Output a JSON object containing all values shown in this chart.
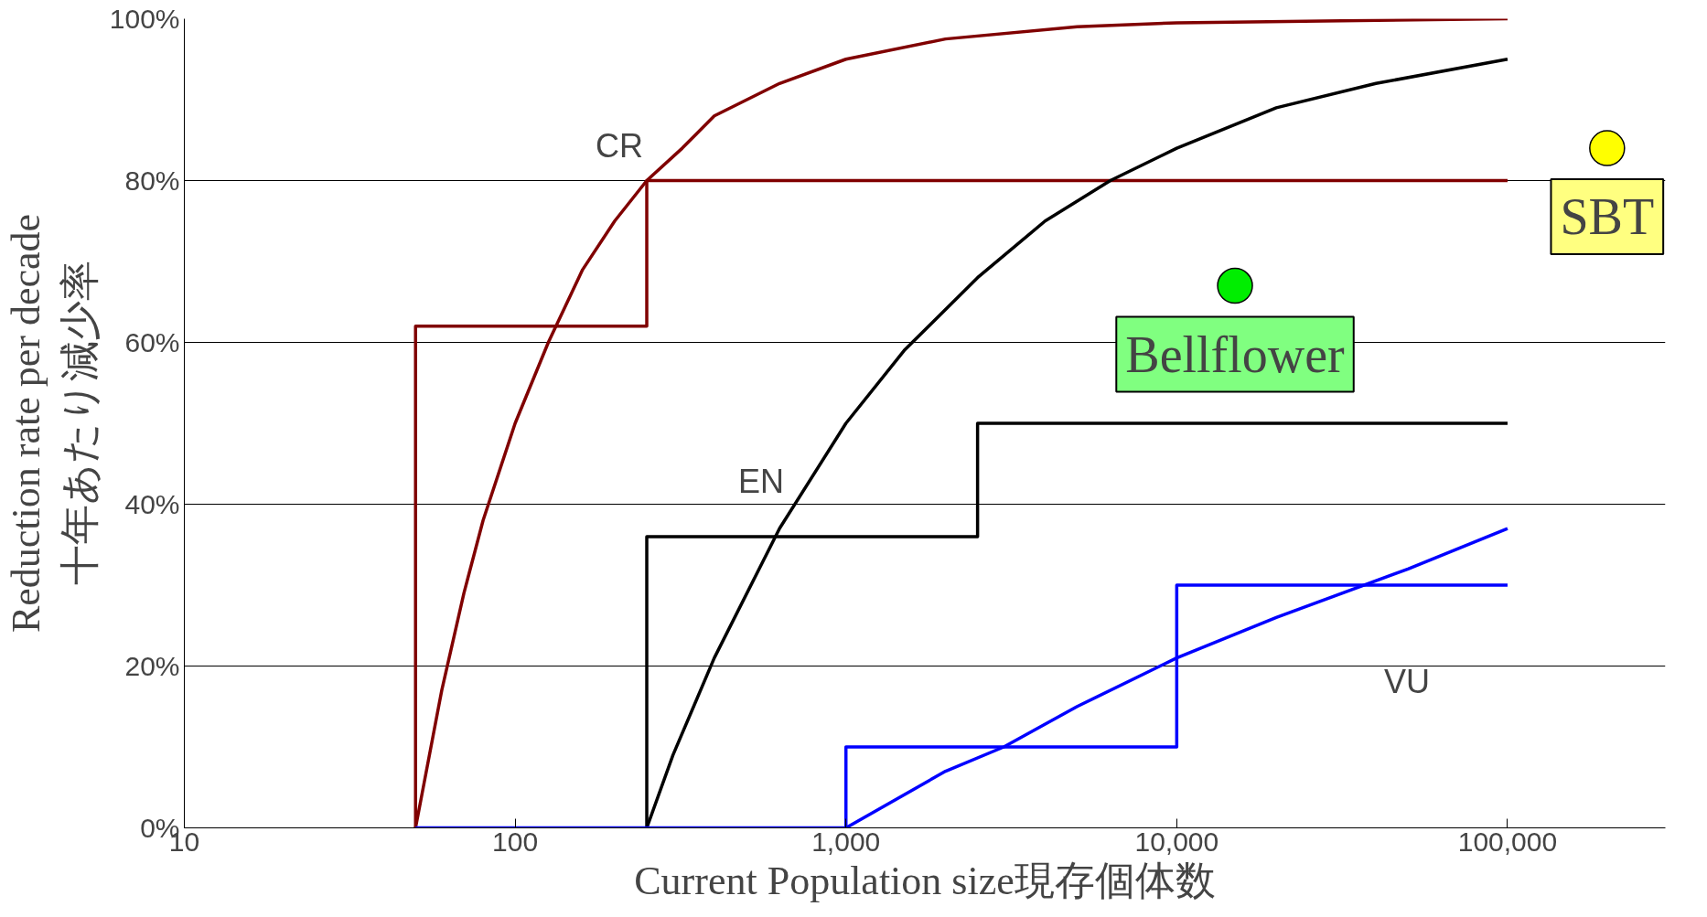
{
  "chart_data": {
    "type": "line",
    "xlabel": "Current Population size現存個体数",
    "ylabel": "Reduction rate per decade\n十年あたり減少率",
    "log": "x",
    "xlim": [
      10,
      300000
    ],
    "ylim": [
      0,
      100
    ],
    "xticks": [
      10,
      100,
      {
        "value": 1000,
        "label": "1,000"
      },
      {
        "value": 10000,
        "label": "10,000"
      },
      {
        "value": 100000,
        "label": "100,000"
      }
    ],
    "yticks": [
      {
        "value": 0,
        "label": "0%"
      },
      {
        "value": 20,
        "label": "20%"
      },
      {
        "value": 40,
        "label": "40%"
      },
      {
        "value": 60,
        "label": "60%"
      },
      {
        "value": 80,
        "label": "80%"
      },
      {
        "value": 100,
        "label": "100%"
      }
    ],
    "grid": "y",
    "legend": false,
    "marker": "none",
    "line_style": "solid",
    "series": [
      {
        "color": "#800000",
        "x": [
          50,
          60,
          70,
          80,
          100,
          126,
          160,
          200,
          250,
          320,
          400,
          630,
          1000,
          2000,
          5000,
          10000,
          100000
        ],
        "values": [
          0,
          17,
          29,
          38,
          50,
          60,
          69,
          75,
          80,
          84,
          88,
          92,
          95,
          97.5,
          99,
          99.5,
          100
        ]
      },
      {
        "name": "CR",
        "color": "#800000",
        "x": [
          50,
          50,
          250,
          250,
          100000
        ],
        "values": [
          0,
          62,
          62,
          80,
          80
        ]
      },
      {
        "color": "#000000",
        "x": [
          250,
          300,
          400,
          630,
          1000,
          1500,
          2500,
          4000,
          6300,
          10000,
          20000,
          40000,
          100000
        ],
        "values": [
          0,
          9,
          21,
          37,
          50,
          59,
          68,
          75,
          80,
          84,
          89,
          92,
          95
        ]
      },
      {
        "name": "EN",
        "color": "#000000",
        "x": [
          250,
          250,
          2500,
          2500,
          100000
        ],
        "values": [
          0,
          36,
          36,
          50,
          50
        ]
      },
      {
        "color": "#0000ff",
        "x": [
          1000,
          2000,
          3000,
          5000,
          10000,
          20000,
          50000,
          100000
        ],
        "values": [
          0,
          7,
          10,
          15,
          21,
          26,
          32,
          37
        ]
      },
      {
        "name": "VU",
        "color": "#0000ff",
        "x": [
          50,
          1000,
          1000,
          10000,
          10000,
          100000
        ],
        "values": [
          0,
          0,
          10,
          10,
          30,
          30
        ]
      },
      {
        "name": "Bellflower",
        "type": "scatter",
        "marker": "circle",
        "color": "#00ee00",
        "x": [
          15000
        ],
        "values": [
          67
        ]
      },
      {
        "name": "SBT",
        "type": "scatter",
        "marker": "circle",
        "color": "#ffff00",
        "x": [
          200000
        ],
        "values": [
          84
        ]
      }
    ]
  }
}
